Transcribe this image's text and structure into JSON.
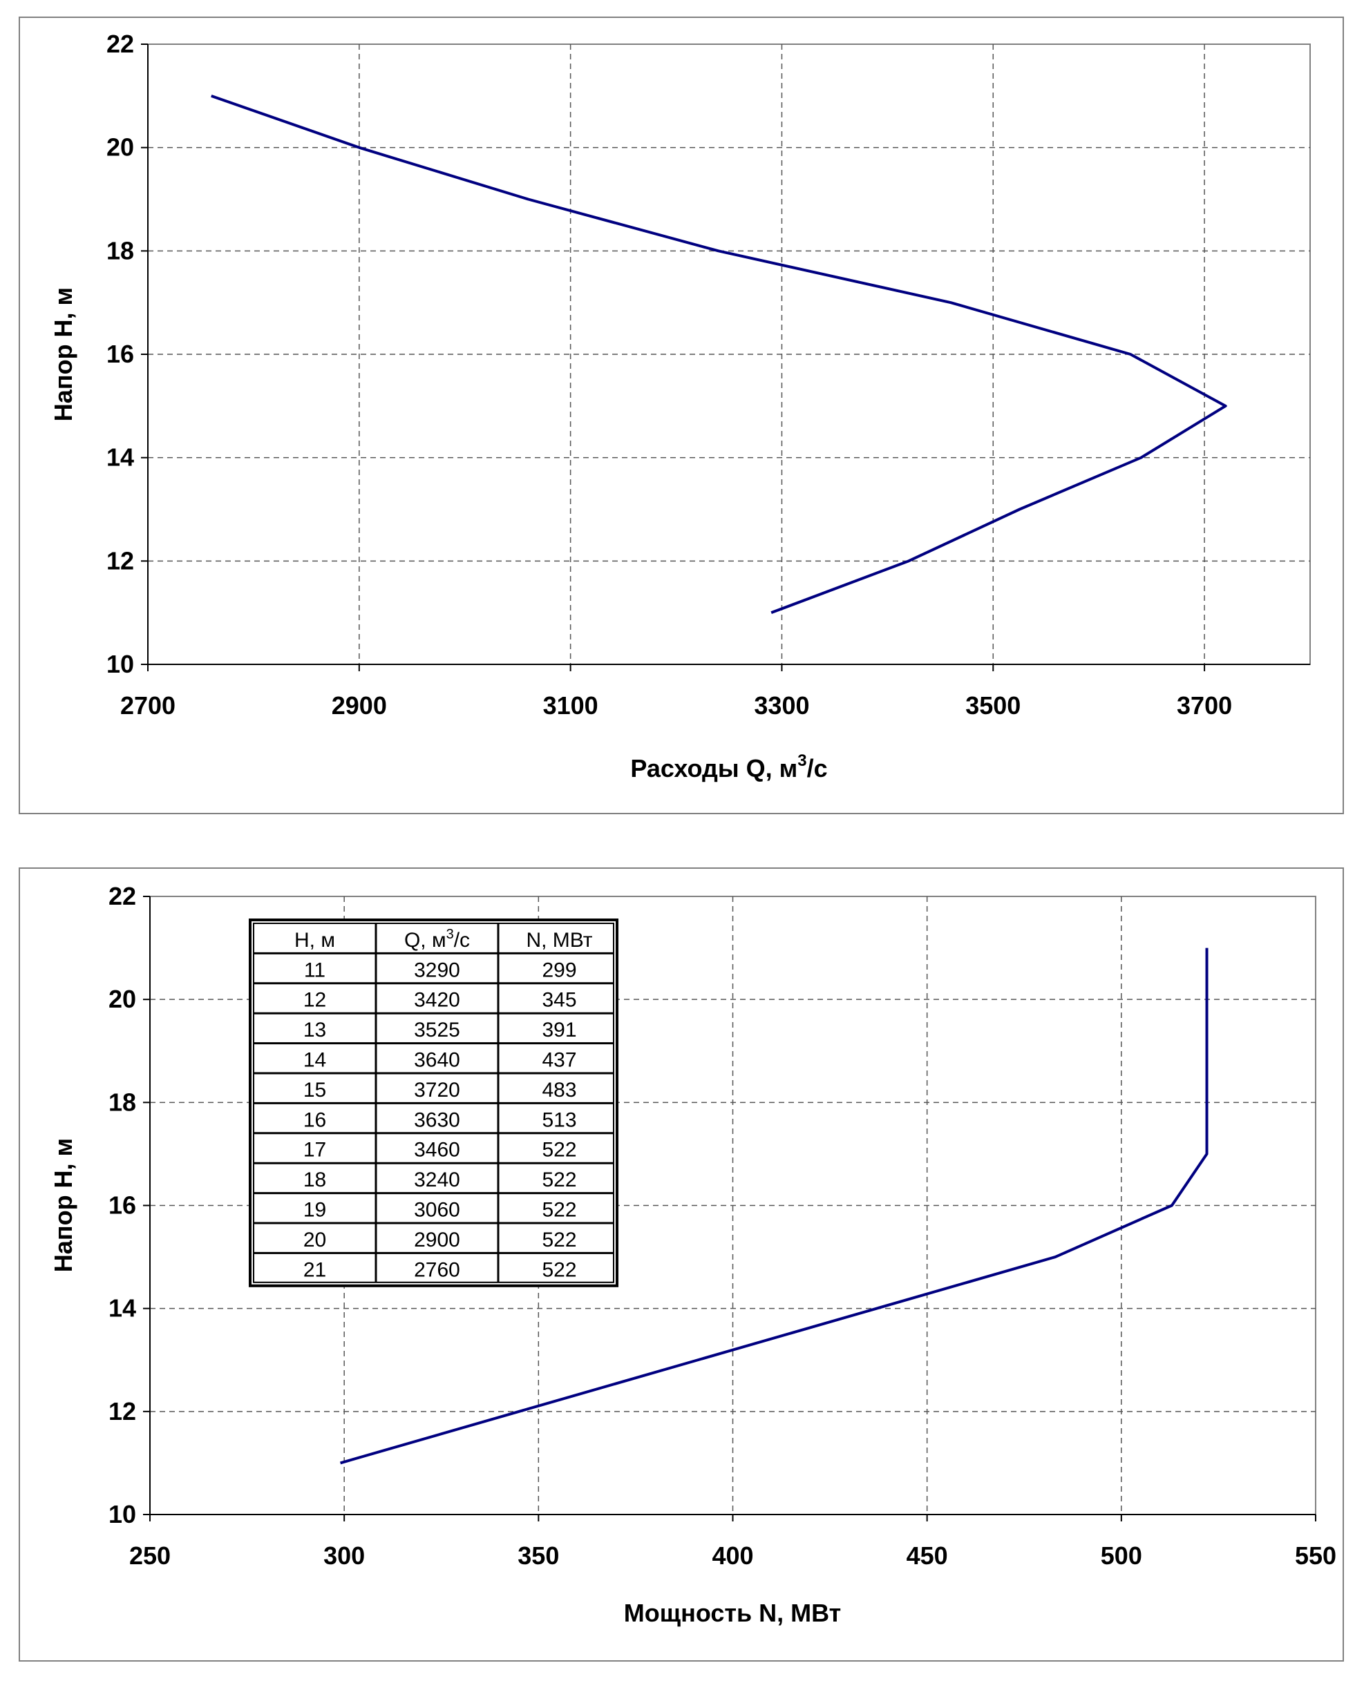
{
  "chart_data": [
    {
      "type": "line",
      "title": "",
      "xlabel": "Расходы Q, м",
      "xlabel_sup": "3",
      "xlabel_tail": "/с",
      "ylabel": "Напор Н, м",
      "xlim": [
        2700,
        3800
      ],
      "ylim": [
        10,
        22
      ],
      "xticks": [
        2700,
        2900,
        3100,
        3300,
        3500,
        3700
      ],
      "yticks": [
        10,
        12,
        14,
        16,
        18,
        20,
        22
      ],
      "grid": true,
      "series": [
        {
          "name": "Q(H)",
          "color": "#000080",
          "x": [
            3290,
            3420,
            3525,
            3640,
            3720,
            3630,
            3460,
            3240,
            3060,
            2900,
            2760
          ],
          "y": [
            11,
            12,
            13,
            14,
            15,
            16,
            17,
            18,
            19,
            20,
            21
          ]
        }
      ]
    },
    {
      "type": "line",
      "title": "",
      "xlabel": "Мощность N, МВт",
      "ylabel": "Напор Н, м",
      "xlim": [
        250,
        550
      ],
      "ylim": [
        10,
        22
      ],
      "xticks": [
        250,
        300,
        350,
        400,
        450,
        500,
        550
      ],
      "yticks": [
        10,
        12,
        14,
        16,
        18,
        20,
        22
      ],
      "grid": true,
      "series": [
        {
          "name": "N(H)",
          "color": "#000080",
          "x": [
            299,
            345,
            391,
            437,
            483,
            513,
            522,
            522,
            522,
            522,
            522
          ],
          "y": [
            11,
            12,
            13,
            14,
            15,
            16,
            17,
            18,
            19,
            20,
            21
          ]
        }
      ],
      "table": {
        "headers": [
          "Н, м",
          "Q, м",
          "N, МВт"
        ],
        "q_sup": "3",
        "q_tail": "/с",
        "rows": [
          [
            "11",
            "3290",
            "299"
          ],
          [
            "12",
            "3420",
            "345"
          ],
          [
            "13",
            "3525",
            "391"
          ],
          [
            "14",
            "3640",
            "437"
          ],
          [
            "15",
            "3720",
            "483"
          ],
          [
            "16",
            "3630",
            "513"
          ],
          [
            "17",
            "3460",
            "522"
          ],
          [
            "18",
            "3240",
            "522"
          ],
          [
            "19",
            "3060",
            "522"
          ],
          [
            "20",
            "2900",
            "522"
          ],
          [
            "21",
            "2760",
            "522"
          ]
        ]
      }
    }
  ]
}
